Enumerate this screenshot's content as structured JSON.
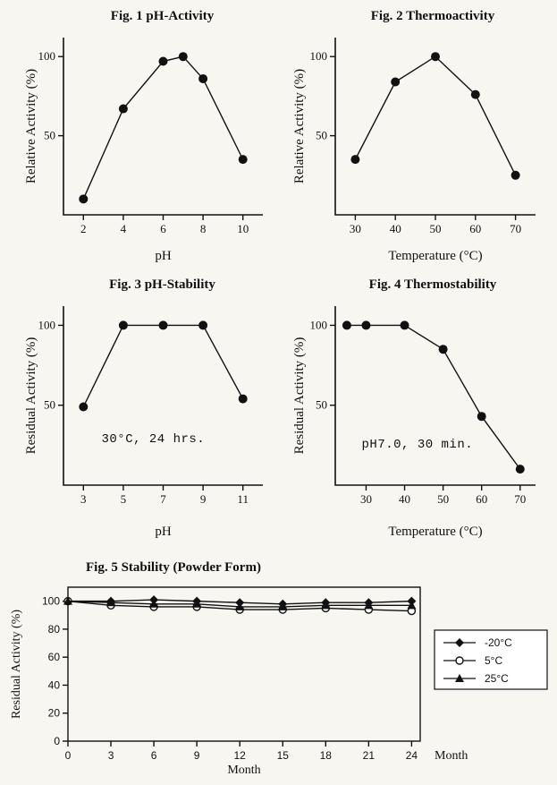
{
  "page": {
    "background": "#f7f6f1"
  },
  "chart_data": [
    {
      "id": "fig1",
      "type": "line",
      "title": "Fig. 1  pH-Activity",
      "xlabel": "pH",
      "ylabel": "Relative Activity (%)",
      "x": [
        2,
        4,
        6,
        7,
        8,
        10
      ],
      "series": [
        {
          "name": "Relative activity",
          "marker": "filled-circle",
          "values": [
            10,
            67,
            97,
            100,
            86,
            35
          ]
        }
      ],
      "xticks": [
        2,
        4,
        6,
        8,
        10
      ],
      "yticks": [
        50,
        100
      ],
      "xlim": [
        1,
        11
      ],
      "ylim": [
        0,
        112
      ],
      "grid": false,
      "legend": false,
      "box": false
    },
    {
      "id": "fig2",
      "type": "line",
      "title": "Fig. 2  Thermoactivity",
      "xlabel": "Temperature (°C)",
      "ylabel": "Relative Activity (%)",
      "x": [
        30,
        40,
        50,
        60,
        70
      ],
      "series": [
        {
          "name": "Relative activity",
          "marker": "filled-circle",
          "values": [
            35,
            84,
            100,
            76,
            25
          ]
        }
      ],
      "xticks": [
        30,
        40,
        50,
        60,
        70
      ],
      "yticks": [
        50,
        100
      ],
      "xlim": [
        25,
        75
      ],
      "ylim": [
        0,
        112
      ],
      "grid": false,
      "legend": false,
      "box": false
    },
    {
      "id": "fig3",
      "type": "line",
      "title": "Fig. 3  pH-Stability",
      "xlabel": "pH",
      "ylabel": "Residual Activity (%)",
      "x": [
        3,
        5,
        7,
        9,
        11
      ],
      "series": [
        {
          "name": "Residual activity",
          "marker": "filled-circle",
          "values": [
            49,
            100,
            100,
            100,
            54
          ]
        }
      ],
      "xticks": [
        3,
        5,
        7,
        9,
        11
      ],
      "yticks": [
        50,
        100
      ],
      "xlim": [
        2,
        12
      ],
      "ylim": [
        0,
        112
      ],
      "annotation": {
        "text": "30°C, 24 hrs.",
        "fx": 0.45,
        "fy": 0.24
      },
      "grid": false,
      "legend": false,
      "box": false
    },
    {
      "id": "fig4",
      "type": "line",
      "title": "Fig. 4  Thermostability",
      "xlabel": "Temperature (°C)",
      "ylabel": "Residual Activity (%)",
      "x": [
        25,
        30,
        40,
        50,
        60,
        70
      ],
      "series": [
        {
          "name": "Residual activity",
          "marker": "filled-circle",
          "values": [
            100,
            100,
            100,
            85,
            43,
            10
          ]
        }
      ],
      "xticks": [
        30,
        40,
        50,
        60,
        70
      ],
      "yticks": [
        50,
        100
      ],
      "xlim": [
        22,
        74
      ],
      "ylim": [
        0,
        112
      ],
      "annotation": {
        "text": "pH7.0, 30 min.",
        "fx": 0.41,
        "fy": 0.21
      },
      "grid": false,
      "legend": false,
      "box": false
    },
    {
      "id": "fig5",
      "type": "line",
      "title": "Fig. 5 Stability (Powder Form)",
      "xlabel": "Month",
      "xlabel_right": "Month",
      "ylabel": "Residual Activity (%)",
      "x": [
        0,
        3,
        6,
        9,
        12,
        15,
        18,
        21,
        24
      ],
      "series": [
        {
          "name": "-20°C",
          "marker": "filled-diamond",
          "values": [
            100,
            100,
            101,
            100,
            99,
            98,
            99,
            99,
            100
          ]
        },
        {
          "name": "5°C",
          "marker": "open-circle",
          "values": [
            100,
            97,
            96,
            96,
            94,
            94,
            95,
            94,
            93
          ]
        },
        {
          "name": "25°C",
          "marker": "filled-triangle",
          "values": [
            100,
            99,
            98,
            98,
            96,
            96,
            97,
            97,
            97
          ]
        }
      ],
      "xticks": [
        0,
        3,
        6,
        9,
        12,
        15,
        18,
        21,
        24
      ],
      "yticks": [
        0,
        20,
        40,
        60,
        80,
        100
      ],
      "xlim": [
        0,
        24.6
      ],
      "ylim": [
        0,
        110
      ],
      "grid": false,
      "legend": true,
      "legend_position": "right",
      "box": true
    }
  ]
}
